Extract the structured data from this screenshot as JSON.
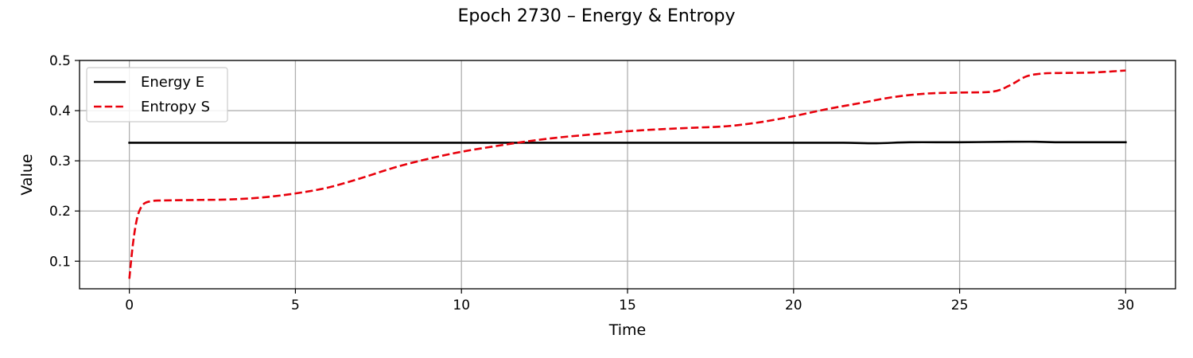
{
  "chart_data": {
    "type": "line",
    "title": "Epoch 2730 – Energy & Entropy",
    "xlabel": "Time",
    "ylabel": "Value",
    "xlim": [
      -1.5,
      31.5
    ],
    "ylim": [
      0.045,
      0.5
    ],
    "xticks": [
      0,
      5,
      10,
      15,
      20,
      25,
      30
    ],
    "yticks": [
      0.1,
      0.2,
      0.3,
      0.4,
      0.5
    ],
    "xtick_labels": [
      "0",
      "5",
      "10",
      "15",
      "20",
      "25",
      "30"
    ],
    "ytick_labels": [
      "0.1",
      "0.2",
      "0.3",
      "0.4",
      "0.5"
    ],
    "grid": true,
    "legend_position": "top-left",
    "series": [
      {
        "name": "Energy E",
        "color": "#000000",
        "style": "solid",
        "x": [
          0,
          2,
          5,
          10,
          15,
          20,
          21.5,
          22.5,
          23.5,
          25,
          26.5,
          27.3,
          28,
          30
        ],
        "y": [
          0.336,
          0.336,
          0.336,
          0.336,
          0.336,
          0.336,
          0.336,
          0.335,
          0.337,
          0.337,
          0.338,
          0.338,
          0.337,
          0.337
        ]
      },
      {
        "name": "Entropy S",
        "color": "#e8000b",
        "style": "dashed",
        "x": [
          0,
          0.1,
          0.2,
          0.3,
          0.45,
          0.7,
          1.0,
          2,
          3,
          4,
          5,
          6,
          7,
          8,
          9,
          10,
          11,
          12,
          13,
          14,
          15,
          16,
          17,
          18,
          19,
          20,
          21,
          22,
          23,
          24,
          25,
          26,
          26.5,
          27,
          27.5,
          28,
          29,
          30
        ],
        "y": [
          0.065,
          0.13,
          0.175,
          0.2,
          0.215,
          0.22,
          0.221,
          0.222,
          0.223,
          0.227,
          0.235,
          0.247,
          0.266,
          0.287,
          0.304,
          0.318,
          0.329,
          0.339,
          0.347,
          0.353,
          0.359,
          0.363,
          0.366,
          0.369,
          0.377,
          0.389,
          0.403,
          0.415,
          0.427,
          0.434,
          0.436,
          0.438,
          0.45,
          0.468,
          0.474,
          0.475,
          0.476,
          0.48
        ]
      }
    ]
  }
}
